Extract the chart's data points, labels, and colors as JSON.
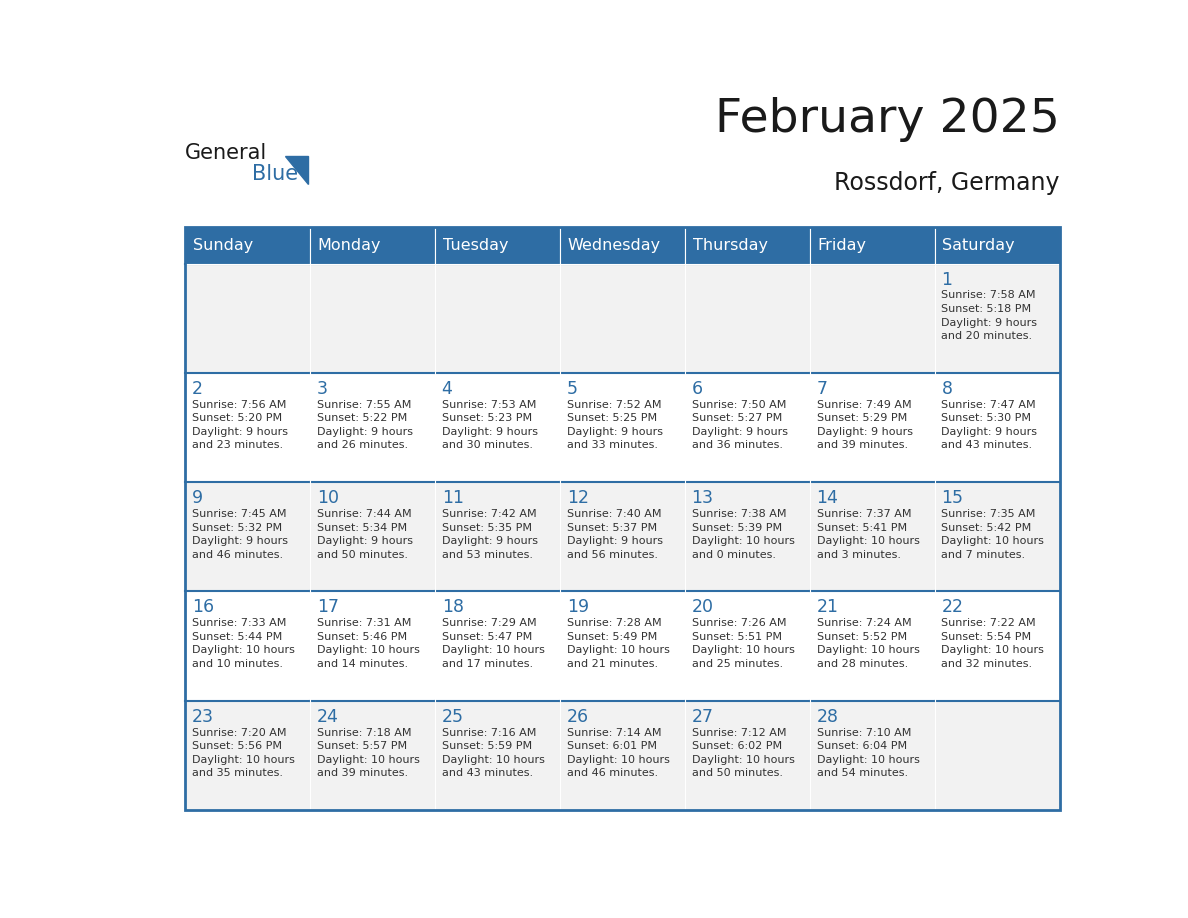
{
  "title": "February 2025",
  "subtitle": "Rossdorf, Germany",
  "days_of_week": [
    "Sunday",
    "Monday",
    "Tuesday",
    "Wednesday",
    "Thursday",
    "Friday",
    "Saturday"
  ],
  "header_bg": "#2E6DA4",
  "header_text": "#FFFFFF",
  "cell_bg_odd": "#F2F2F2",
  "cell_bg_even": "#FFFFFF",
  "cell_border": "#2E6DA4",
  "day_number_color": "#2E6DA4",
  "info_text_color": "#333333",
  "title_color": "#1A1A1A",
  "subtitle_color": "#1A1A1A",
  "logo_general_color": "#1A1A1A",
  "logo_blue_color": "#2E6DA4",
  "weeks": [
    [
      {
        "day": null,
        "info": ""
      },
      {
        "day": null,
        "info": ""
      },
      {
        "day": null,
        "info": ""
      },
      {
        "day": null,
        "info": ""
      },
      {
        "day": null,
        "info": ""
      },
      {
        "day": null,
        "info": ""
      },
      {
        "day": 1,
        "info": "Sunrise: 7:58 AM\nSunset: 5:18 PM\nDaylight: 9 hours\nand 20 minutes."
      }
    ],
    [
      {
        "day": 2,
        "info": "Sunrise: 7:56 AM\nSunset: 5:20 PM\nDaylight: 9 hours\nand 23 minutes."
      },
      {
        "day": 3,
        "info": "Sunrise: 7:55 AM\nSunset: 5:22 PM\nDaylight: 9 hours\nand 26 minutes."
      },
      {
        "day": 4,
        "info": "Sunrise: 7:53 AM\nSunset: 5:23 PM\nDaylight: 9 hours\nand 30 minutes."
      },
      {
        "day": 5,
        "info": "Sunrise: 7:52 AM\nSunset: 5:25 PM\nDaylight: 9 hours\nand 33 minutes."
      },
      {
        "day": 6,
        "info": "Sunrise: 7:50 AM\nSunset: 5:27 PM\nDaylight: 9 hours\nand 36 minutes."
      },
      {
        "day": 7,
        "info": "Sunrise: 7:49 AM\nSunset: 5:29 PM\nDaylight: 9 hours\nand 39 minutes."
      },
      {
        "day": 8,
        "info": "Sunrise: 7:47 AM\nSunset: 5:30 PM\nDaylight: 9 hours\nand 43 minutes."
      }
    ],
    [
      {
        "day": 9,
        "info": "Sunrise: 7:45 AM\nSunset: 5:32 PM\nDaylight: 9 hours\nand 46 minutes."
      },
      {
        "day": 10,
        "info": "Sunrise: 7:44 AM\nSunset: 5:34 PM\nDaylight: 9 hours\nand 50 minutes."
      },
      {
        "day": 11,
        "info": "Sunrise: 7:42 AM\nSunset: 5:35 PM\nDaylight: 9 hours\nand 53 minutes."
      },
      {
        "day": 12,
        "info": "Sunrise: 7:40 AM\nSunset: 5:37 PM\nDaylight: 9 hours\nand 56 minutes."
      },
      {
        "day": 13,
        "info": "Sunrise: 7:38 AM\nSunset: 5:39 PM\nDaylight: 10 hours\nand 0 minutes."
      },
      {
        "day": 14,
        "info": "Sunrise: 7:37 AM\nSunset: 5:41 PM\nDaylight: 10 hours\nand 3 minutes."
      },
      {
        "day": 15,
        "info": "Sunrise: 7:35 AM\nSunset: 5:42 PM\nDaylight: 10 hours\nand 7 minutes."
      }
    ],
    [
      {
        "day": 16,
        "info": "Sunrise: 7:33 AM\nSunset: 5:44 PM\nDaylight: 10 hours\nand 10 minutes."
      },
      {
        "day": 17,
        "info": "Sunrise: 7:31 AM\nSunset: 5:46 PM\nDaylight: 10 hours\nand 14 minutes."
      },
      {
        "day": 18,
        "info": "Sunrise: 7:29 AM\nSunset: 5:47 PM\nDaylight: 10 hours\nand 17 minutes."
      },
      {
        "day": 19,
        "info": "Sunrise: 7:28 AM\nSunset: 5:49 PM\nDaylight: 10 hours\nand 21 minutes."
      },
      {
        "day": 20,
        "info": "Sunrise: 7:26 AM\nSunset: 5:51 PM\nDaylight: 10 hours\nand 25 minutes."
      },
      {
        "day": 21,
        "info": "Sunrise: 7:24 AM\nSunset: 5:52 PM\nDaylight: 10 hours\nand 28 minutes."
      },
      {
        "day": 22,
        "info": "Sunrise: 7:22 AM\nSunset: 5:54 PM\nDaylight: 10 hours\nand 32 minutes."
      }
    ],
    [
      {
        "day": 23,
        "info": "Sunrise: 7:20 AM\nSunset: 5:56 PM\nDaylight: 10 hours\nand 35 minutes."
      },
      {
        "day": 24,
        "info": "Sunrise: 7:18 AM\nSunset: 5:57 PM\nDaylight: 10 hours\nand 39 minutes."
      },
      {
        "day": 25,
        "info": "Sunrise: 7:16 AM\nSunset: 5:59 PM\nDaylight: 10 hours\nand 43 minutes."
      },
      {
        "day": 26,
        "info": "Sunrise: 7:14 AM\nSunset: 6:01 PM\nDaylight: 10 hours\nand 46 minutes."
      },
      {
        "day": 27,
        "info": "Sunrise: 7:12 AM\nSunset: 6:02 PM\nDaylight: 10 hours\nand 50 minutes."
      },
      {
        "day": 28,
        "info": "Sunrise: 7:10 AM\nSunset: 6:04 PM\nDaylight: 10 hours\nand 54 minutes."
      },
      {
        "day": null,
        "info": ""
      }
    ]
  ]
}
